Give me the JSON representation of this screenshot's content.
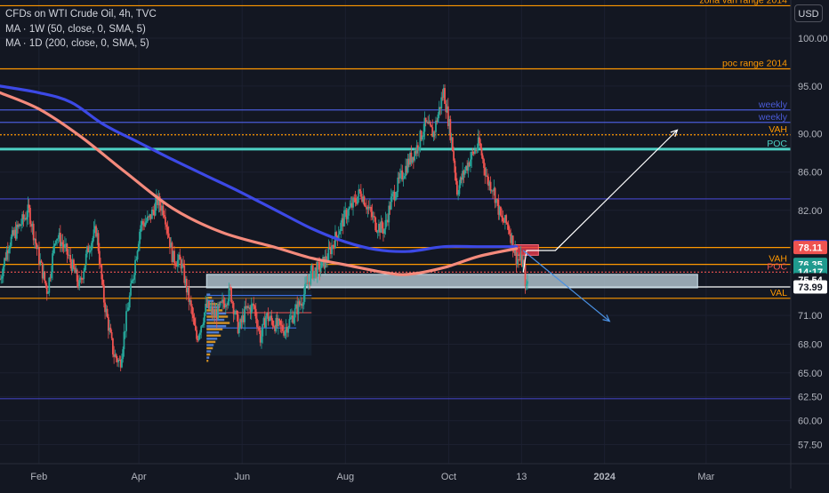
{
  "legend": {
    "title": "CFDs on WTI Crude Oil, 4h, TVC",
    "ma1": "MA · 1W (50, close, 0, SMA, 5)",
    "ma2": "MA · 1D (200, close, 0, SMA, 5)"
  },
  "currency_button": "USD",
  "colors": {
    "background": "#131722",
    "up_candle": "#26a69a",
    "down_candle": "#ef5350",
    "ma1_line": "#3c49e6",
    "ma2_line": "#f48a7c",
    "orange_level": "#ff9800",
    "teal_level": "#4dd0c4",
    "blue_level": "#4040b8",
    "zone_fill": "#b2c4d0"
  },
  "chart_data": {
    "type": "candlestick",
    "price_scale": {
      "ticks": [
        100.0,
        95.0,
        90.0,
        86.0,
        82.0,
        71.0,
        68.0,
        65.0,
        62.5,
        60.0,
        57.5
      ],
      "tick_labels": [
        "100.00",
        "95.00",
        "90.00",
        "86.00",
        "82.00",
        "71.00",
        "68.00",
        "65.00",
        "62.50",
        "60.00",
        "57.50"
      ],
      "range": [
        55.5,
        104.0
      ]
    },
    "time_axis": {
      "labels": [
        "Feb",
        "Apr",
        "Jun",
        "Aug",
        "Oct",
        "13",
        "2024",
        "Mar"
      ],
      "bold": [
        false,
        false,
        false,
        false,
        false,
        false,
        true,
        false
      ],
      "label_dates": [
        "2023-02-01",
        "2023-04-01",
        "2023-06-01",
        "2023-08-01",
        "2023-10-01",
        "2023-11-13",
        "2024-01-01",
        "2024-03-01"
      ],
      "range": [
        "2023-01-09",
        "2024-04-20"
      ]
    },
    "ohlc_trace": [
      [
        "2023-01-09",
        74.8
      ],
      [
        "2023-01-14",
        78.5
      ],
      [
        "2023-01-21",
        80.5
      ],
      [
        "2023-01-26",
        82.0
      ],
      [
        "2023-02-01",
        77.0
      ],
      [
        "2023-02-06",
        73.5
      ],
      [
        "2023-02-11",
        79.5
      ],
      [
        "2023-02-15",
        78.5
      ],
      [
        "2023-02-20",
        76.5
      ],
      [
        "2023-02-25",
        74.0
      ],
      [
        "2023-03-02",
        78.0
      ],
      [
        "2023-03-07",
        80.0
      ],
      [
        "2023-03-11",
        73.0
      ],
      [
        "2023-03-17",
        67.0
      ],
      [
        "2023-03-21",
        66.0
      ],
      [
        "2023-03-24",
        70.0
      ],
      [
        "2023-03-28",
        74.5
      ],
      [
        "2023-04-02",
        80.5
      ],
      [
        "2023-04-07",
        81.0
      ],
      [
        "2023-04-12",
        83.0
      ],
      [
        "2023-04-16",
        82.0
      ],
      [
        "2023-04-21",
        77.0
      ],
      [
        "2023-04-26",
        76.5
      ],
      [
        "2023-05-02",
        71.5
      ],
      [
        "2023-05-05",
        68.5
      ],
      [
        "2023-05-11",
        72.0
      ],
      [
        "2023-05-16",
        71.0
      ],
      [
        "2023-05-20",
        72.0
      ],
      [
        "2023-05-25",
        73.5
      ],
      [
        "2023-05-30",
        69.5
      ],
      [
        "2023-06-03",
        71.5
      ],
      [
        "2023-06-08",
        72.0
      ],
      [
        "2023-06-12",
        68.5
      ],
      [
        "2023-06-15",
        71.0
      ],
      [
        "2023-06-21",
        70.0
      ],
      [
        "2023-06-26",
        69.5
      ],
      [
        "2023-07-01",
        71.0
      ],
      [
        "2023-07-06",
        72.5
      ],
      [
        "2023-07-12",
        75.5
      ],
      [
        "2023-07-17",
        76.0
      ],
      [
        "2023-07-21",
        77.0
      ],
      [
        "2023-07-27",
        79.5
      ],
      [
        "2023-08-01",
        81.5
      ],
      [
        "2023-08-05",
        82.5
      ],
      [
        "2023-08-10",
        84.0
      ],
      [
        "2023-08-15",
        82.0
      ],
      [
        "2023-08-19",
        80.5
      ],
      [
        "2023-08-24",
        80.0
      ],
      [
        "2023-08-28",
        83.0
      ],
      [
        "2023-09-03",
        85.5
      ],
      [
        "2023-09-07",
        87.0
      ],
      [
        "2023-09-12",
        88.5
      ],
      [
        "2023-09-17",
        91.0
      ],
      [
        "2023-09-22",
        90.0
      ],
      [
        "2023-09-28",
        94.5
      ],
      [
        "2023-10-03",
        89.0
      ],
      [
        "2023-10-06",
        84.0
      ],
      [
        "2023-10-10",
        86.0
      ],
      [
        "2023-10-14",
        87.5
      ],
      [
        "2023-10-19",
        89.0
      ],
      [
        "2023-10-24",
        85.0
      ],
      [
        "2023-10-27",
        84.5
      ],
      [
        "2023-11-01",
        81.0
      ],
      [
        "2023-11-05",
        80.5
      ],
      [
        "2023-11-10",
        77.0
      ],
      [
        "2023-11-14",
        76.5
      ],
      [
        "2023-11-16",
        73.5
      ],
      [
        "2023-11-17",
        75.5
      ]
    ],
    "series": [
      {
        "name": "MA · 1W (50, close, 0, SMA, 5)",
        "color": "#3c49e6",
        "points": [
          [
            "2023-01-09",
            95.0
          ],
          [
            "2023-02-01",
            94.3
          ],
          [
            "2023-02-20",
            93.3
          ],
          [
            "2023-03-11",
            91.0
          ],
          [
            "2023-04-01",
            89.1
          ],
          [
            "2023-04-21",
            87.3
          ],
          [
            "2023-05-11",
            85.6
          ],
          [
            "2023-05-30",
            84.0
          ],
          [
            "2023-06-21",
            82.0
          ],
          [
            "2023-07-12",
            80.1
          ],
          [
            "2023-08-01",
            78.7
          ],
          [
            "2023-08-19",
            77.9
          ],
          [
            "2023-09-07",
            77.7
          ],
          [
            "2023-09-28",
            78.2
          ],
          [
            "2023-10-19",
            78.2
          ],
          [
            "2023-11-10",
            78.2
          ]
        ]
      },
      {
        "name": "MA · 1D (200, close, 0, SMA, 5)",
        "color": "#f48a7c",
        "points": [
          [
            "2023-01-09",
            94.3
          ],
          [
            "2023-02-01",
            92.6
          ],
          [
            "2023-02-25",
            89.8
          ],
          [
            "2023-03-24",
            86.0
          ],
          [
            "2023-04-21",
            82.2
          ],
          [
            "2023-05-20",
            79.7
          ],
          [
            "2023-06-21",
            78.1
          ],
          [
            "2023-07-12",
            77.0
          ],
          [
            "2023-08-01",
            76.3
          ],
          [
            "2023-08-24",
            75.5
          ],
          [
            "2023-09-07",
            75.3
          ],
          [
            "2023-09-28",
            76.0
          ],
          [
            "2023-10-19",
            77.2
          ],
          [
            "2023-11-10",
            78.0
          ]
        ]
      }
    ],
    "horizontal_levels": [
      {
        "price": 103.4,
        "label": "zona vah range 2014",
        "color": "#ff9800",
        "style": "solid"
      },
      {
        "price": 96.8,
        "label": "poc range 2014",
        "color": "#ff9800",
        "style": "solid"
      },
      {
        "price": 92.5,
        "label": "weekly",
        "color": "#4a5bd6",
        "style": "solid"
      },
      {
        "price": 91.2,
        "label": "weekly",
        "color": "#4a5bd6",
        "style": "solid"
      },
      {
        "price": 89.9,
        "label": "VAH",
        "color": "#ff9800",
        "style": "dotted"
      },
      {
        "price": 88.4,
        "label": "POC",
        "color": "#4dd0c4",
        "style": "solid"
      },
      {
        "price": 83.2,
        "label": "",
        "color": "#4040b8",
        "style": "solid"
      },
      {
        "price": 78.11,
        "label": "",
        "color": "#ff9800",
        "style": "solid"
      },
      {
        "price": 76.35,
        "label": "VAH",
        "color": "#ff9800",
        "style": "solid"
      },
      {
        "price": 75.54,
        "label": "POC",
        "color": "#ef5350",
        "style": "dotted"
      },
      {
        "price": 73.99,
        "label": "",
        "color": "#ffffff",
        "style": "solid"
      },
      {
        "price": 72.8,
        "label": "VAL",
        "color": "#ff9800",
        "style": "solid"
      },
      {
        "price": 62.3,
        "label": "",
        "color": "#4040b8",
        "style": "solid"
      }
    ],
    "price_tags": [
      {
        "text": "78.21",
        "price": 78.21,
        "bg": "#2e3fe0",
        "fg": "#ffffff"
      },
      {
        "text": "78.11",
        "price": 78.11,
        "bg": "#ef5350",
        "fg": "#ffffff"
      },
      {
        "text": "76.35",
        "price": 76.35,
        "bg": "#1f9a8e",
        "fg": "#ffffff"
      },
      {
        "text": "14:17",
        "price": 75.55,
        "bg": "#1f9a8e",
        "fg": "#ffffff"
      },
      {
        "text": "75.54",
        "price": 74.75,
        "bg": "#131722",
        "fg": "#ffffff"
      },
      {
        "text": "73.99",
        "price": 73.99,
        "bg": "#ffffff",
        "fg": "#131722"
      }
    ],
    "zones": [
      {
        "name": "demand zone",
        "from": "2023-05-11",
        "to": "2024-02-25",
        "top": 75.3,
        "bottom": 73.9,
        "color": "#b2c4d0"
      },
      {
        "name": "supply block",
        "from": "2023-11-09",
        "to": "2023-11-23",
        "top": 78.4,
        "bottom": 77.3,
        "color": "#e83c50"
      }
    ],
    "projections": [
      {
        "name": "bullish path",
        "color": "#ffffff",
        "points": [
          [
            "2023-11-14",
            75.5
          ],
          [
            "2023-11-16",
            77.8
          ],
          [
            "2023-12-03",
            77.8
          ],
          [
            "2024-02-13",
            90.4
          ]
        ]
      },
      {
        "name": "bearish path",
        "color": "#4a90e2",
        "points": [
          [
            "2023-11-14",
            77.8
          ],
          [
            "2024-01-04",
            70.4
          ]
        ]
      }
    ],
    "last_price": 75.54
  }
}
